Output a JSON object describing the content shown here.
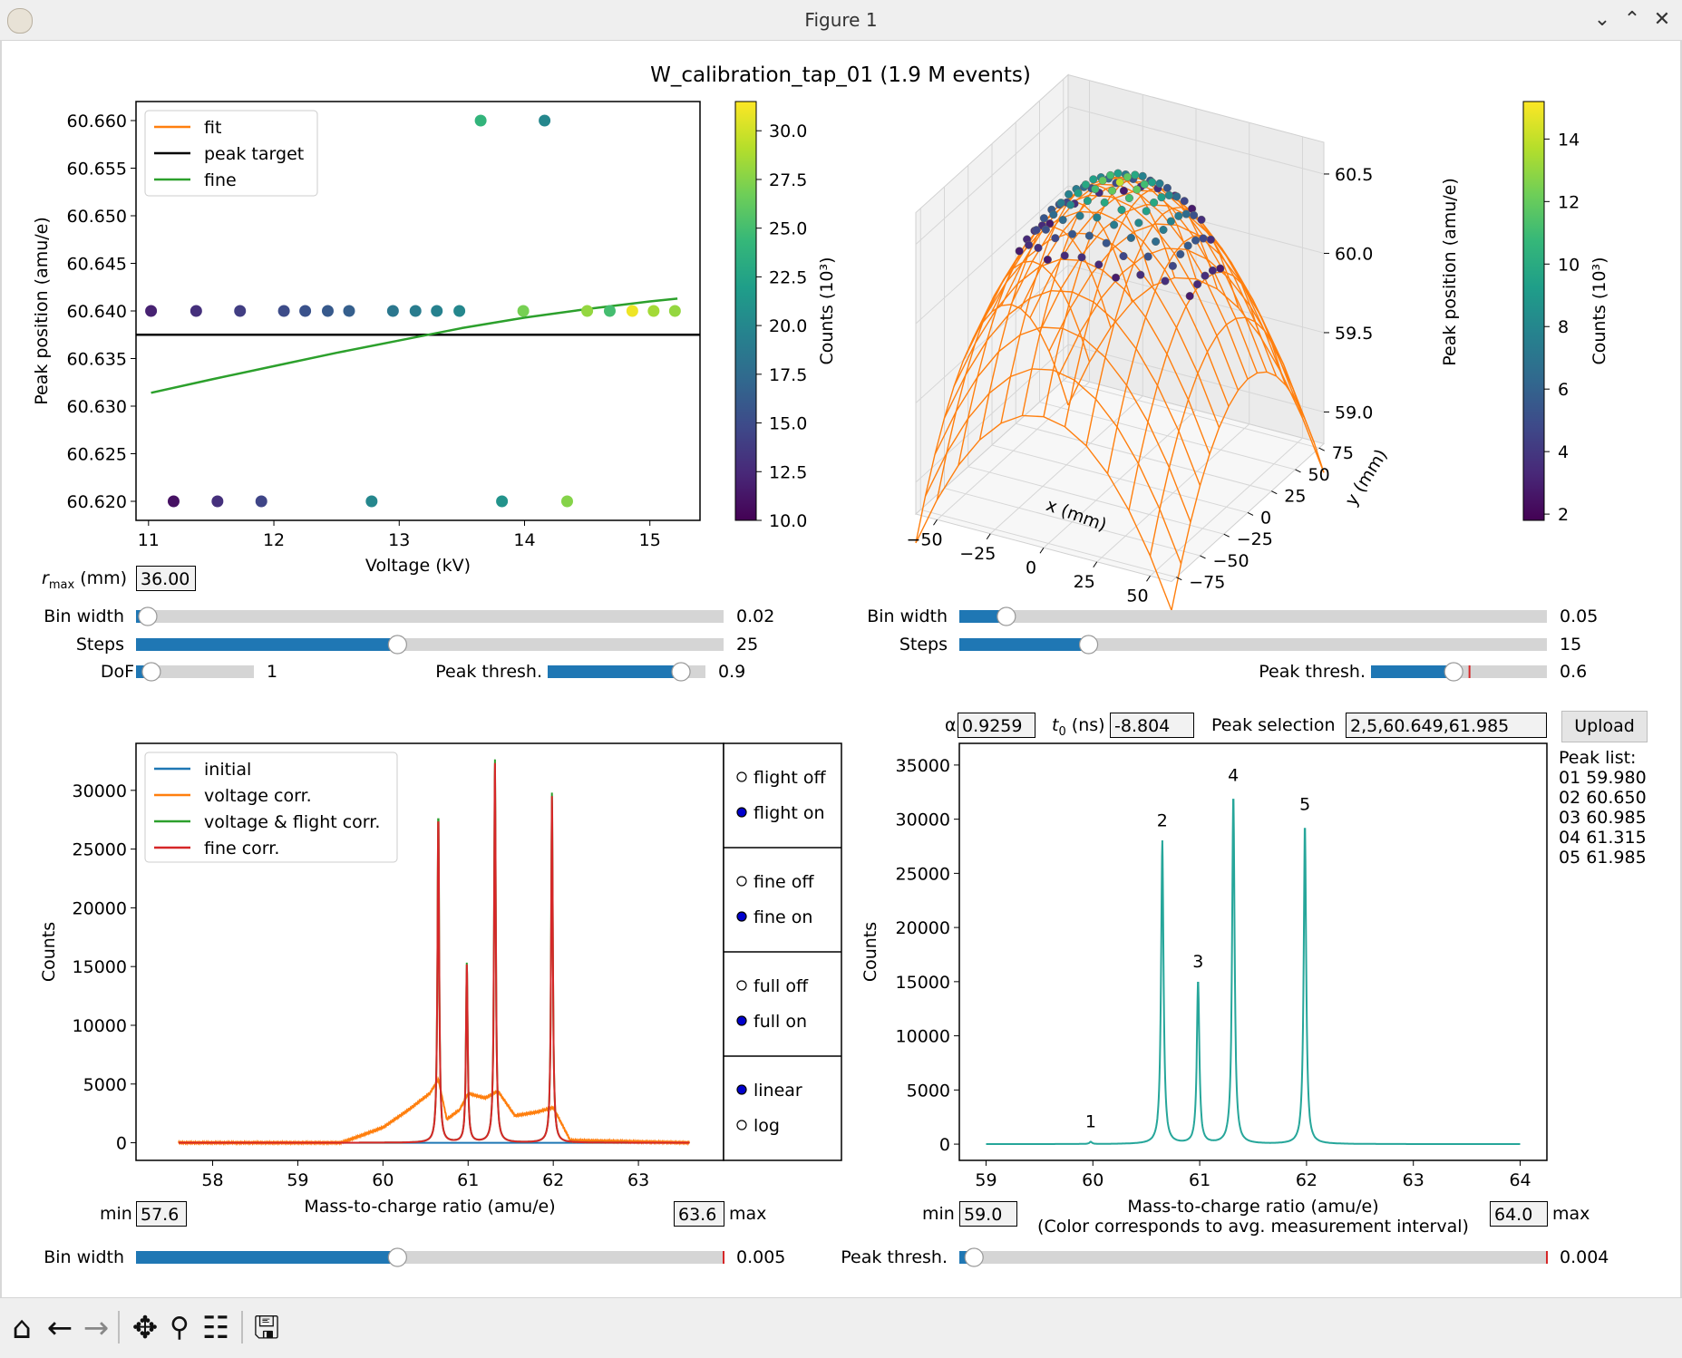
{
  "window": {
    "title": "Figure 1"
  },
  "figure": {
    "suptitle": "W_calibration_tap_01 (1.9 M events)"
  },
  "colormap": [
    "#440154",
    "#482878",
    "#3e4989",
    "#31688e",
    "#26828e",
    "#1f9e89",
    "#35b779",
    "#6ece58",
    "#b5de2b",
    "#fde725"
  ],
  "panel_voltage": {
    "legend": [
      "fit",
      "peak target",
      "fine"
    ],
    "legend_colors": [
      "#ff7f0e",
      "#000000",
      "#2ca02c"
    ],
    "ylabel": "Peak position (amu/e)",
    "xlabel": "Voltage (kV)",
    "xticks": [
      "11",
      "12",
      "13",
      "14",
      "15"
    ],
    "yticks": [
      "60.620",
      "60.625",
      "60.630",
      "60.635",
      "60.640",
      "60.645",
      "60.650",
      "60.655",
      "60.660"
    ],
    "colorbar_label": "Counts (10³)",
    "colorbar_ticks": [
      "10.0",
      "12.5",
      "15.0",
      "17.5",
      "20.0",
      "22.5",
      "25.0",
      "27.5",
      "30.0"
    ]
  },
  "panel_3d": {
    "zlabel": "Peak position (amu/e)",
    "xlabel": "x (mm)",
    "ylabel": "y (mm)",
    "xticks": [
      "−50",
      "−25",
      "0",
      "25",
      "50"
    ],
    "yticks": [
      "−75",
      "−50",
      "−25",
      "0",
      "25",
      "50",
      "75"
    ],
    "zticks": [
      "59.0",
      "59.5",
      "60.0",
      "60.5"
    ],
    "colorbar_label": "Counts (10³)",
    "colorbar_ticks": [
      "2",
      "4",
      "6",
      "8",
      "10",
      "12",
      "14"
    ]
  },
  "controls_left": {
    "rmax_label": "(mm)",
    "rmax_value": "36.00",
    "bin_width_label": "Bin width",
    "bin_width_value": "0.02",
    "steps_label": "Steps",
    "steps_value": "25",
    "dof_label": "DoF",
    "dof_value": "1",
    "peak_thresh_label": "Peak thresh.",
    "peak_thresh_value": "0.9"
  },
  "controls_right": {
    "bin_width_label": "Bin width",
    "bin_width_value": "0.05",
    "steps_label": "Steps",
    "steps_value": "15",
    "peak_thresh_label": "Peak thresh.",
    "peak_thresh_value": "0.6"
  },
  "panel_spectrum": {
    "legend": [
      "initial",
      "voltage corr.",
      "voltage & flight corr.",
      "fine corr."
    ],
    "legend_colors": [
      "#1f77b4",
      "#ff7f0e",
      "#2ca02c",
      "#d62728"
    ],
    "ylabel": "Counts",
    "xlabel": "Mass-to-charge ratio (amu/e)",
    "xticks": [
      "58",
      "59",
      "60",
      "61",
      "62",
      "63"
    ],
    "yticks": [
      "0",
      "5000",
      "10000",
      "15000",
      "20000",
      "25000",
      "30000"
    ],
    "radio_groups": [
      {
        "options": [
          "flight off",
          "flight on"
        ],
        "selected": 1
      },
      {
        "options": [
          "fine off",
          "fine on"
        ],
        "selected": 1
      },
      {
        "options": [
          "full off",
          "full on"
        ],
        "selected": 1
      },
      {
        "options": [
          "linear",
          "log"
        ],
        "selected": 0
      }
    ],
    "min_label": "min",
    "min_value": "57.6",
    "max_label": "max",
    "max_value": "63.6",
    "bin_width_label": "Bin width",
    "bin_width_value": "0.005"
  },
  "panel_peaks": {
    "alpha_label": "α",
    "alpha_value": "0.9259",
    "t0_label": "(ns)",
    "t0_value": "-8.804",
    "peak_selection_label": "Peak selection",
    "peak_selection_value": "2,5,60.649,61.985",
    "upload_label": "Upload",
    "peak_list_title": "Peak list:",
    "peak_list": [
      "01 59.980",
      "02 60.650",
      "03 60.985",
      "04 61.315",
      "05 61.985"
    ],
    "ylabel": "Counts",
    "xlabel": "Mass-to-charge ratio (amu/e)",
    "xlabel2": "(Color corresponds to avg. measurement interval)",
    "xticks": [
      "59",
      "60",
      "61",
      "62",
      "63",
      "64"
    ],
    "yticks": [
      "0",
      "5000",
      "10000",
      "15000",
      "20000",
      "25000",
      "30000",
      "35000"
    ],
    "min_label": "min",
    "min_value": "59.0",
    "max_label": "max",
    "max_value": "64.0",
    "peak_thresh_label": "Peak thresh.",
    "peak_thresh_value": "0.004"
  },
  "toolbar": {
    "icons": [
      "home-icon",
      "back-arrow-icon",
      "forward-arrow-icon",
      "pan-icon",
      "zoom-icon",
      "configure-subplots-icon",
      "save-icon"
    ]
  },
  "chart_data": [
    {
      "type": "scatter",
      "xlabel": "Voltage (kV)",
      "ylabel": "Peak position (amu/e)",
      "xlim": [
        10.9,
        15.4
      ],
      "ylim": [
        60.618,
        60.662
      ],
      "colorbar": {
        "label": "Counts (10³)",
        "range": [
          10,
          31.5
        ]
      },
      "legend_placement": "upper-left",
      "series": [
        {
          "name": "peak target",
          "kind": "hline",
          "y": 60.6375
        },
        {
          "name": "fine",
          "kind": "line",
          "x": [
            11.02,
            11.5,
            12.0,
            12.5,
            13.0,
            13.5,
            14.0,
            14.5,
            15.0,
            15.22
          ],
          "y": [
            60.6314,
            60.6328,
            60.6342,
            60.6356,
            60.6369,
            60.6382,
            60.6393,
            60.6402,
            60.641,
            60.6413
          ]
        },
        {
          "name": "",
          "kind": "points",
          "points": [
            [
              11.02,
              60.64,
              12
            ],
            [
              11.38,
              60.64,
              13
            ],
            [
              11.73,
              60.64,
              14
            ],
            [
              12.08,
              60.64,
              15
            ],
            [
              12.25,
              60.64,
              15.5
            ],
            [
              12.43,
              60.64,
              16
            ],
            [
              12.6,
              60.64,
              16.5
            ],
            [
              12.95,
              60.64,
              18.5
            ],
            [
              13.13,
              60.64,
              19
            ],
            [
              13.3,
              60.64,
              19.5
            ],
            [
              13.48,
              60.64,
              20
            ],
            [
              13.99,
              60.64,
              27
            ],
            [
              14.5,
              60.64,
              28
            ],
            [
              14.68,
              60.64,
              25
            ],
            [
              14.86,
              60.64,
              31
            ],
            [
              15.03,
              60.64,
              28.5
            ],
            [
              15.2,
              60.64,
              28
            ],
            [
              13.65,
              60.66,
              24
            ],
            [
              14.16,
              60.66,
              20
            ],
            [
              11.2,
              60.62,
              11
            ],
            [
              11.55,
              60.62,
              13
            ],
            [
              11.9,
              60.62,
              14.5
            ],
            [
              12.78,
              60.62,
              20
            ],
            [
              13.82,
              60.62,
              21
            ],
            [
              14.34,
              60.62,
              27.5
            ]
          ]
        }
      ]
    },
    {
      "type": "scatter",
      "projection": "3d",
      "xlabel": "x (mm)",
      "ylabel": "y (mm)",
      "zlabel": "Peak position (amu/e)",
      "xlim": [
        -60,
        60
      ],
      "ylim": [
        -80,
        80
      ],
      "zlim": [
        58.8,
        60.7
      ],
      "colorbar": {
        "label": "Counts (10³)",
        "range": [
          1.8,
          15.2
        ]
      },
      "surface": "paraboloid fit, peak 60.65 at center"
    },
    {
      "type": "line",
      "xlabel": "Mass-to-charge ratio (amu/e)",
      "ylabel": "Counts",
      "xlim": [
        57.1,
        64.0
      ],
      "ylim": [
        -1500,
        34000
      ],
      "legend_placement": "upper-left",
      "peaks_fine": [
        [
          60.65,
          28000
        ],
        [
          60.985,
          15200
        ],
        [
          61.315,
          32500
        ],
        [
          61.985,
          29700
        ]
      ],
      "peaks_voltage": [
        [
          60.65,
          5500
        ],
        [
          60.985,
          4300
        ],
        [
          61.315,
          4500
        ],
        [
          61.985,
          3000
        ]
      ],
      "series": [
        {
          "name": "initial",
          "x": [
            57.6,
            63.6
          ],
          "y": [
            0,
            0
          ]
        },
        {
          "name": "voltage corr.",
          "x": [
            57.6,
            59.5,
            59.7,
            60.0,
            60.3,
            60.55,
            60.65,
            60.75,
            60.9,
            61.0,
            61.2,
            61.35,
            61.55,
            61.8,
            62.0,
            62.2,
            63.6
          ],
          "y": [
            0,
            0,
            500,
            1300,
            2800,
            4200,
            5400,
            2000,
            2800,
            4200,
            3800,
            4400,
            2300,
            2600,
            3000,
            200,
            0
          ]
        },
        {
          "name": "voltage & flight corr.",
          "x": [
            57.6,
            60.65,
            60.985,
            61.315,
            61.985,
            63.6
          ],
          "y": [
            0,
            28000,
            15200,
            32500,
            29700,
            0
          ]
        },
        {
          "name": "fine corr.",
          "x": [
            57.6,
            60.65,
            60.985,
            61.315,
            61.985,
            63.6
          ],
          "y": [
            0,
            28000,
            15200,
            32500,
            29700,
            0
          ]
        }
      ]
    },
    {
      "type": "line",
      "xlabel": "Mass-to-charge ratio (amu/e)",
      "ylabel": "Counts",
      "xlim": [
        58.75,
        64.25
      ],
      "ylim": [
        -1500,
        37000
      ],
      "peaks": [
        [
          59.98,
          200,
          "1"
        ],
        [
          60.65,
          28000,
          "2"
        ],
        [
          60.985,
          15000,
          "3"
        ],
        [
          61.315,
          32200,
          "4"
        ],
        [
          61.985,
          29500,
          "5"
        ]
      ],
      "series": [
        {
          "name": "",
          "color": "#26a69a",
          "x": [
            59.0,
            64.0
          ],
          "y": [
            0,
            0
          ]
        }
      ]
    }
  ]
}
